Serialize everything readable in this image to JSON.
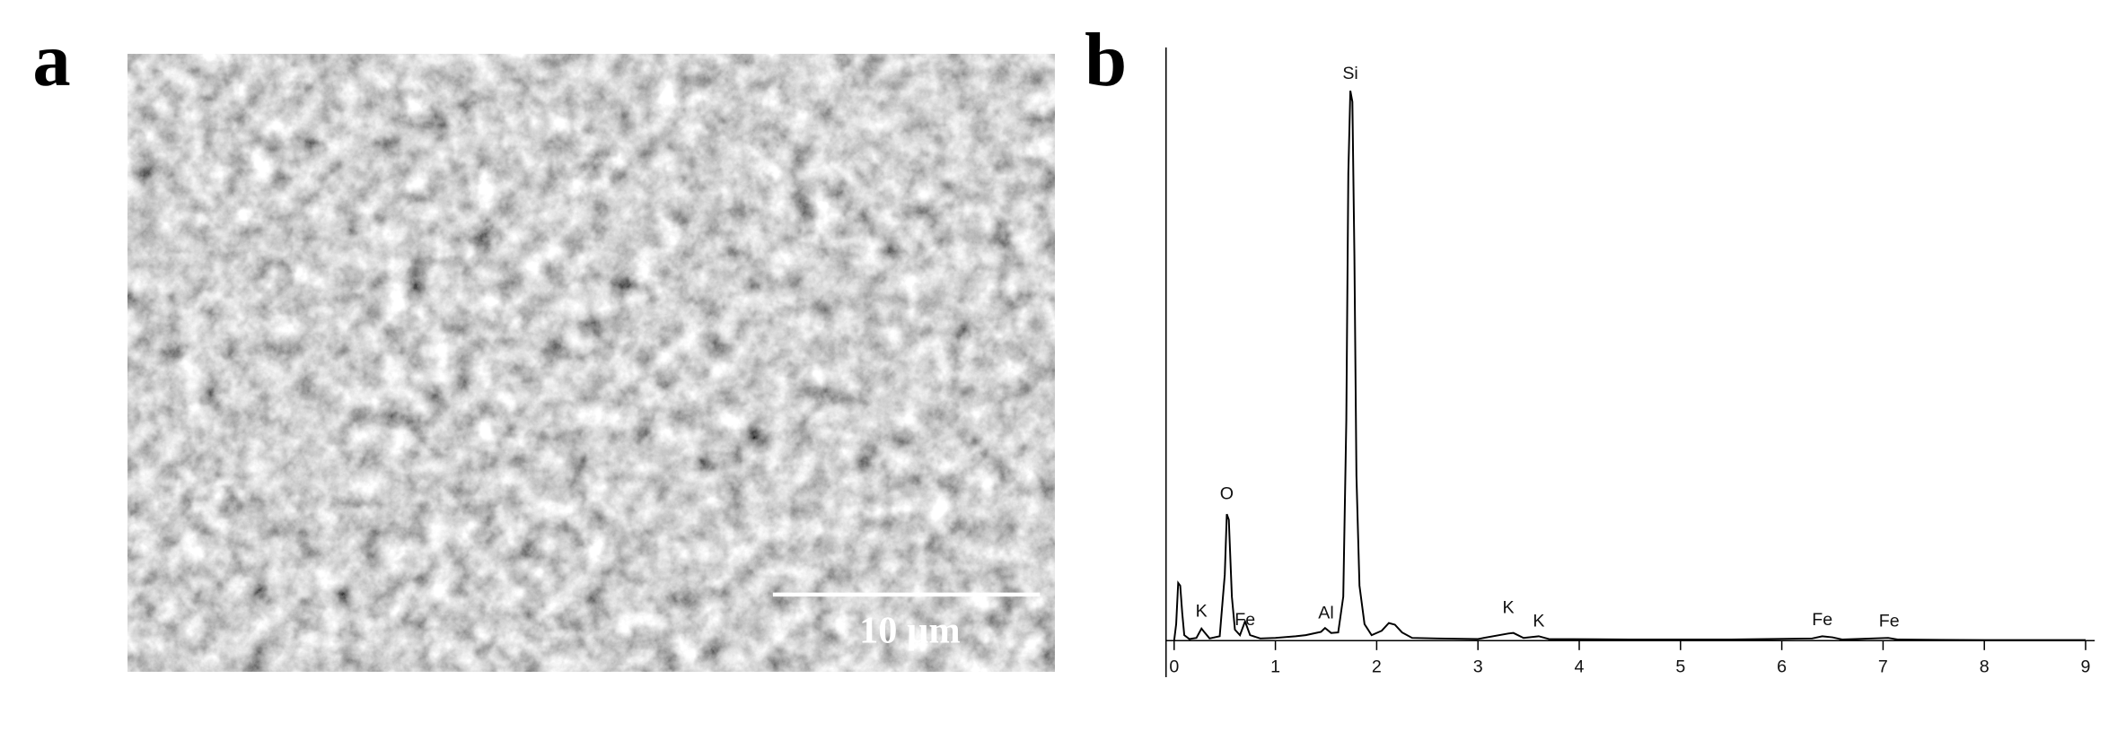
{
  "panels": {
    "a": {
      "label": "a",
      "scale_bar": "10 µm"
    },
    "b": {
      "label": "b"
    }
  },
  "chart_data": {
    "type": "line",
    "color": "#000000",
    "x": [
      0,
      0.02,
      0.04,
      0.06,
      0.08,
      0.1,
      0.15,
      0.22,
      0.27,
      0.3,
      0.35,
      0.45,
      0.5,
      0.52,
      0.54,
      0.57,
      0.6,
      0.65,
      0.7,
      0.75,
      0.85,
      1.0,
      1.2,
      1.3,
      1.45,
      1.49,
      1.55,
      1.62,
      1.67,
      1.7,
      1.72,
      1.74,
      1.76,
      1.78,
      1.8,
      1.83,
      1.88,
      1.95,
      2.05,
      2.12,
      2.18,
      2.25,
      2.35,
      2.6,
      3.0,
      3.3,
      3.35,
      3.45,
      3.6,
      3.7,
      4.5,
      5.5,
      6.3,
      6.4,
      6.5,
      6.6,
      7.05,
      7.15,
      8.0,
      9.0
    ],
    "values": [
      0,
      3,
      10.5,
      10,
      5,
      1,
      0.3,
      0.5,
      2.2,
      1.5,
      0.4,
      0.8,
      12,
      23,
      22,
      8,
      2,
      1,
      3.5,
      1,
      0.4,
      0.5,
      0.8,
      1,
      1.6,
      2.3,
      1.4,
      1.5,
      8,
      40,
      85,
      100,
      98,
      70,
      30,
      10,
      3,
      1,
      1.8,
      3.2,
      2.9,
      1.5,
      0.5,
      0.4,
      0.3,
      1.3,
      1.4,
      0.5,
      0.8,
      0.3,
      0.2,
      0.2,
      0.4,
      0.8,
      0.6,
      0.2,
      0.5,
      0.2,
      0.1,
      0.1
    ],
    "xlim": [
      -0.08,
      9.09
    ],
    "ylim": [
      0,
      105
    ],
    "xticks": [
      0,
      1,
      2,
      3,
      4,
      5,
      6,
      7,
      8,
      9
    ],
    "annotations": [
      {
        "text": "Si",
        "x": 1.74,
        "y": 103
      },
      {
        "text": "O",
        "x": 0.52,
        "y": 26.6
      },
      {
        "text": "K",
        "x": 0.27,
        "y": 5.2
      },
      {
        "text": "Fe",
        "x": 0.7,
        "y": 3.7
      },
      {
        "text": "Al",
        "x": 1.5,
        "y": 4.9
      },
      {
        "text": "K",
        "x": 3.3,
        "y": 5.9
      },
      {
        "text": "K",
        "x": 3.6,
        "y": 3.4
      },
      {
        "text": "Fe",
        "x": 6.4,
        "y": 3.7
      },
      {
        "text": "Fe",
        "x": 7.06,
        "y": 3.4
      }
    ]
  }
}
